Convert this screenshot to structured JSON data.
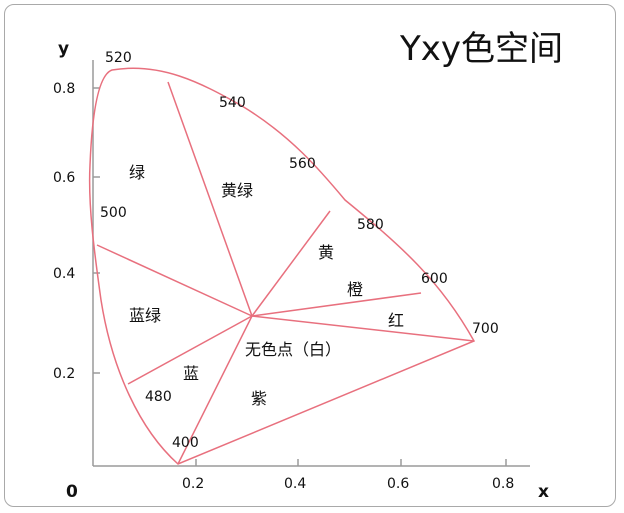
{
  "title": "Yxy色空间",
  "axes": {
    "x_label": "x",
    "y_label": "y",
    "origin_label": "0",
    "x_ticks": [
      "0.2",
      "0.4",
      "0.6",
      "0.8"
    ],
    "y_ticks": [
      "0.2",
      "0.4",
      "0.6",
      "0.8"
    ]
  },
  "wavelengths": [
    "400",
    "480",
    "500",
    "520",
    "540",
    "560",
    "580",
    "600",
    "700"
  ],
  "regions": [
    "绿",
    "黄绿",
    "黄",
    "橙",
    "红",
    "蓝绿",
    "蓝",
    "紫",
    "无色点（白）"
  ],
  "colors": {
    "locus": "#e8707e",
    "axis": "#9a9a9a",
    "frame": "#a9a9a9"
  }
}
